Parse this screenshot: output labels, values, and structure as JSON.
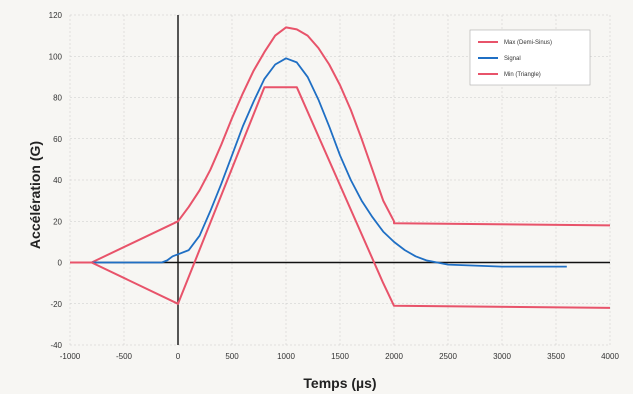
{
  "chart_data": {
    "type": "line",
    "title": "",
    "xlabel": "Temps (µs)",
    "ylabel": "Accélération (G)",
    "xlim": [
      -1000,
      4000
    ],
    "ylim": [
      -40,
      120
    ],
    "xticks": [
      "-1000",
      "-500",
      "0",
      "500",
      "1000",
      "1500",
      "2000",
      "2500",
      "3000",
      "3500",
      "4000"
    ],
    "yticks": [
      "120",
      "100",
      "80",
      "60",
      "40",
      "20",
      "0",
      "-20",
      "-40"
    ],
    "grid": true,
    "legend_position": "top-right",
    "colors": {
      "max": "#e8536a",
      "signal": "#1f6fc4",
      "min": "#e8536a",
      "axis": "#111111"
    },
    "series": [
      {
        "name": "Max (Demi-Sinus)",
        "x": [
          -1000,
          -800,
          0,
          100,
          200,
          300,
          400,
          500,
          600,
          700,
          800,
          900,
          1000,
          1100,
          1200,
          1300,
          1400,
          1500,
          1600,
          1700,
          1800,
          1900,
          2000,
          2000,
          4000
        ],
        "y": [
          0,
          0,
          20,
          27,
          35,
          45,
          57,
          70,
          82,
          93,
          102,
          110,
          114,
          113,
          110,
          104,
          96,
          86,
          74,
          60,
          45,
          30,
          20,
          19,
          18
        ]
      },
      {
        "name": "Signal",
        "x": [
          -1000,
          -500,
          -150,
          -100,
          -50,
          0,
          100,
          200,
          300,
          400,
          500,
          600,
          700,
          800,
          900,
          1000,
          1100,
          1200,
          1300,
          1400,
          1500,
          1600,
          1700,
          1800,
          1900,
          2000,
          2100,
          2200,
          2300,
          2400,
          2500,
          3000,
          3300,
          3600
        ],
        "y": [
          0,
          0,
          0,
          1,
          3,
          4,
          6,
          13,
          25,
          38,
          52,
          66,
          78,
          89,
          96,
          99,
          97,
          90,
          79,
          66,
          52,
          40,
          30,
          22,
          15,
          10,
          6,
          3,
          1,
          0,
          -1,
          -2,
          -2,
          -2
        ]
      },
      {
        "name": "Min (Triangle)",
        "x": [
          -1000,
          -800,
          0,
          800,
          1100,
          1900,
          2000,
          4000
        ],
        "y": [
          0,
          0,
          -20,
          85,
          85,
          -10,
          -21,
          -22
        ]
      }
    ]
  }
}
